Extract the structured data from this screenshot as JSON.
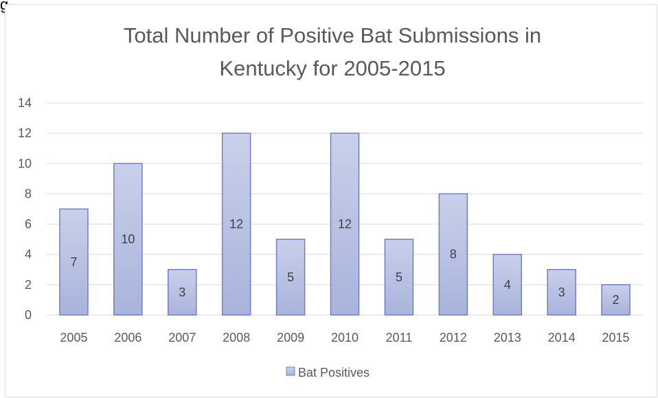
{
  "page": {
    "crop_label": "g"
  },
  "colors": {
    "bar_fill_top": "#c9d0ea",
    "bar_fill_bottom": "#a9b4dc",
    "bar_stroke": "#6f7fc3",
    "grid": "#d9d9d9",
    "text": "#595959"
  },
  "chart_data": {
    "type": "bar",
    "title_lines": [
      "Total Number of Positive Bat Submissions in",
      "Kentucky for 2005-2015"
    ],
    "categories": [
      "2005",
      "2006",
      "2007",
      "2008",
      "2009",
      "2010",
      "2011",
      "2012",
      "2013",
      "2014",
      "2015"
    ],
    "series": [
      {
        "name": "Bat Positives",
        "values": [
          7,
          10,
          3,
          12,
          5,
          12,
          5,
          8,
          4,
          3,
          2
        ]
      }
    ],
    "ylim": [
      0,
      14
    ],
    "yticks": [
      0,
      2,
      4,
      6,
      8,
      10,
      12,
      14
    ],
    "grid": true,
    "legend": "bottom"
  }
}
